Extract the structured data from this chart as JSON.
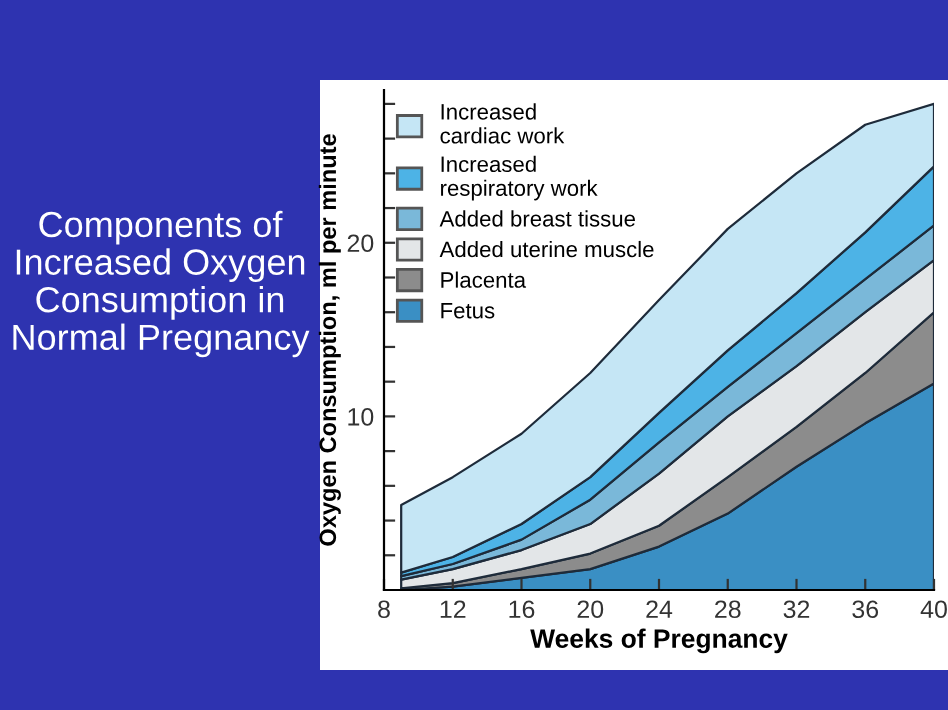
{
  "chart_data": {
    "type": "area",
    "stacked": true,
    "title": "Components of Increased Oxygen Consumption in Normal Pregnancy",
    "xlabel": "Weeks of Pregnancy",
    "ylabel": "Oxygen Consumption, ml per minute",
    "x": [
      9,
      12,
      16,
      20,
      24,
      28,
      32,
      36,
      40
    ],
    "series": [
      {
        "name": "Fetus",
        "color": "#3a8fc4",
        "values": [
          0,
          0.2,
          0.7,
          1.2,
          2.5,
          4.4,
          7.1,
          9.6,
          11.9
        ]
      },
      {
        "name": "Placenta",
        "color": "#8c8c8c",
        "values": [
          0.1,
          0.2,
          0.5,
          0.9,
          1.2,
          2.1,
          2.3,
          2.9,
          4.1
        ]
      },
      {
        "name": "Added uterine muscle",
        "color": "#e3e6e8",
        "values": [
          0.5,
          0.8,
          1.1,
          1.7,
          3.0,
          3.5,
          3.5,
          3.5,
          3.0
        ]
      },
      {
        "name": "Added breast tissue",
        "color": "#7ab8d9",
        "values": [
          0.2,
          0.3,
          0.6,
          1.4,
          1.8,
          1.7,
          1.9,
          1.9,
          2.0
        ]
      },
      {
        "name": "Increased\nrespiratory work",
        "color": "#4db3e6",
        "values": [
          0.2,
          0.4,
          0.9,
          1.3,
          1.7,
          2.1,
          2.3,
          2.7,
          3.4
        ]
      },
      {
        "name": "Increased\ncardiac work",
        "color": "#c5e6f5",
        "values": [
          3.9,
          4.6,
          5.2,
          6.0,
          6.5,
          7.0,
          6.9,
          6.2,
          3.6
        ]
      }
    ],
    "xlim": [
      8,
      40
    ],
    "xticks": [
      8,
      12,
      16,
      20,
      24,
      28,
      32,
      36,
      40
    ],
    "ylim": [
      0,
      28.8
    ],
    "yticks": [
      {
        "value": 2,
        "label": null
      },
      {
        "value": 4,
        "label": null
      },
      {
        "value": 6,
        "label": null
      },
      {
        "value": 8,
        "label": null
      },
      10,
      {
        "value": 12,
        "label": null
      },
      {
        "value": 14,
        "label": null
      },
      {
        "value": 16,
        "label": null
      },
      {
        "value": 18,
        "label": null
      },
      20,
      {
        "value": 22,
        "label": null
      },
      {
        "value": 24,
        "label": null
      },
      {
        "value": 26,
        "label": null
      },
      {
        "value": 28,
        "label": null
      }
    ],
    "grid": false,
    "legend": "top left"
  }
}
